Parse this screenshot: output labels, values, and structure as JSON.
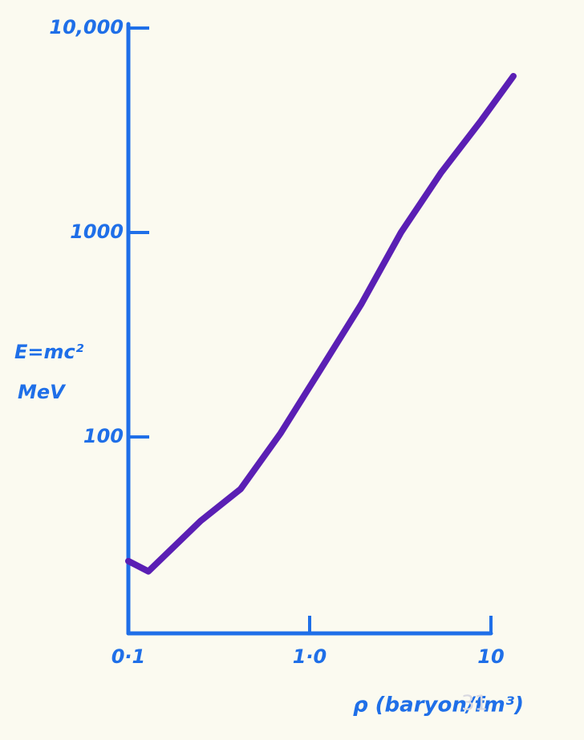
{
  "chart_data": {
    "type": "line",
    "x_label": "ρ (baryon/fm³)",
    "y_label": [
      "E=mc²",
      "MeV"
    ],
    "page_number": "31",
    "log_x": true,
    "log_y": true,
    "xlim": [
      0.1,
      10
    ],
    "ylim": [
      10,
      10000
    ],
    "xticks": [
      {
        "value": 0.1,
        "label": "0·1"
      },
      {
        "value": 1,
        "label": "1·0"
      },
      10
    ],
    "yticks": [
      100,
      1000,
      {
        "value": 10000,
        "label": "10,000"
      }
    ],
    "axis_color": "#1f6fe8",
    "series": [
      {
        "color": "#5a1fb4",
        "x": [
          0.1,
          0.129,
          0.25,
          0.416,
          0.693,
          1.153,
          1.92,
          3.19,
          5.32,
          8.85,
          13.3
        ],
        "values": [
          24.7,
          22,
          38.8,
          55.6,
          104.6,
          215,
          444,
          1000,
          1968,
          3540,
          5820
        ]
      }
    ]
  }
}
